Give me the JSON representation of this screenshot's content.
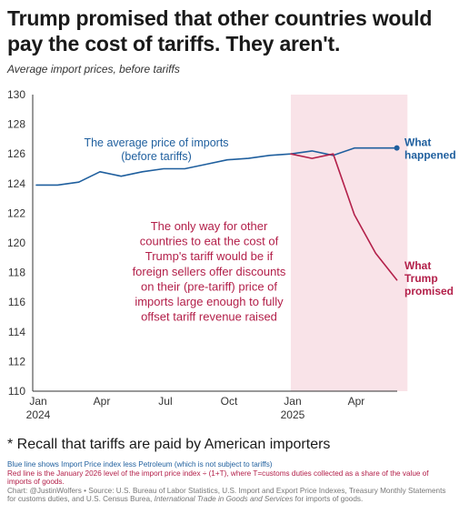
{
  "title": "Trump promised that other countries would pay the cost of tariffs. They aren't.",
  "subtitle": "Average import prices, before tariffs",
  "recall_note": "* Recall that tariffs are paid by American importers",
  "footnotes": {
    "blue_line": "Blue line shows Import Price index less Petroleum (which is not subject to tariffs)",
    "red_line": "Red line is the January 2026 level of the import price index ÷ (1+T), where T=customs duties collected as a share of the value of imports of goods.",
    "source_prefix": "Chart: @JustinWolfers • Source: U.S. Bureau of Labor Statistics, U.S. Import and Export Price Indexes, Treasury Monthly Statements for customs duties, and U.S. Census Burea, ",
    "source_italic": "International Trade in Goods and Services",
    "source_suffix": " for imports of goods."
  },
  "colors": {
    "blue": "#1f5f9e",
    "red": "#b3204a",
    "shade": "#f9e3e8",
    "axis": "#333333"
  },
  "chart_data": {
    "type": "line",
    "title": "Average import prices, before tariffs",
    "ylim": [
      110,
      130
    ],
    "yticks": [
      110,
      112,
      114,
      116,
      118,
      120,
      122,
      124,
      126,
      128,
      130
    ],
    "xlim": [
      0,
      21
    ],
    "xticks": [
      {
        "x": 0,
        "label": "Jan",
        "sublabel": "2024"
      },
      {
        "x": 3,
        "label": "Apr",
        "sublabel": ""
      },
      {
        "x": 6,
        "label": "Jul",
        "sublabel": ""
      },
      {
        "x": 9,
        "label": "Oct",
        "sublabel": ""
      },
      {
        "x": 12,
        "label": "Jan",
        "sublabel": "2025"
      },
      {
        "x": 15,
        "label": "Apr",
        "sublabel": ""
      }
    ],
    "shaded_region": {
      "x_start": 12,
      "x_end": 17.5
    },
    "grid": false,
    "series": [
      {
        "key": "happened",
        "label": "What happened",
        "color": "#1f5f9e",
        "x": [
          0,
          1,
          2,
          3,
          4,
          5,
          6,
          7,
          8,
          9,
          10,
          11,
          12,
          13,
          14,
          15,
          16,
          17
        ],
        "values": [
          123.9,
          123.9,
          124.1,
          124.8,
          124.5,
          124.8,
          125.0,
          125.0,
          125.3,
          125.6,
          125.7,
          125.9,
          126.0,
          126.2,
          125.9,
          126.4,
          126.4,
          126.4
        ]
      },
      {
        "key": "promised",
        "label": "What Trump promised",
        "color": "#b3204a",
        "x": [
          12,
          13,
          14,
          15,
          16,
          17
        ],
        "values": [
          126.0,
          125.7,
          126.0,
          121.9,
          119.3,
          117.5
        ]
      }
    ],
    "annotations": {
      "blue_label_line1": "The average price of imports",
      "blue_label_line2": "(before tariffs)",
      "red_text": [
        "The only way for other",
        "countries to eat the cost of",
        "Trump's tariff would be if",
        "foreign sellers offer discounts",
        "on their (pre-tariff) price of",
        "imports large enough to fully",
        "offset tariff revenue raised"
      ],
      "end_label_happened": [
        "What",
        "happened"
      ],
      "end_label_promised": [
        "What",
        "Trump",
        "promised"
      ]
    }
  }
}
